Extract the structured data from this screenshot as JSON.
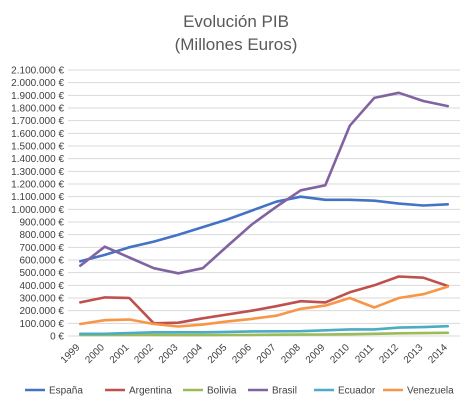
{
  "chart_data": {
    "type": "line",
    "title": "Evolución PIB",
    "subtitle": "(Millones Euros)",
    "xlabel": "",
    "ylabel": "",
    "x": [
      "1999",
      "2000",
      "2001",
      "2002",
      "2003",
      "2004",
      "2005",
      "2006",
      "2007",
      "2008",
      "2009",
      "2010",
      "2011",
      "2012",
      "2013",
      "2014"
    ],
    "ylim": [
      0,
      2100000
    ],
    "ytick_step": 100000,
    "ytick_labels": [
      "0 €",
      "100.000 €",
      "200.000 €",
      "300.000 €",
      "400.000 €",
      "500.000 €",
      "600.000 €",
      "700.000 €",
      "800.000 €",
      "900.000 €",
      "1.000.000 €",
      "1.100.000 €",
      "1.200.000 €",
      "1.300.000 €",
      "1.400.000 €",
      "1.500.000 €",
      "1.600.000 €",
      "1.700.000 €",
      "1.800.000 €",
      "1.900.000 €",
      "2.000.000 €",
      "2.100.000 €"
    ],
    "grid": true,
    "legend_position": "bottom",
    "series": [
      {
        "name": "España",
        "color": "#4472c4",
        "values": [
          590000,
          640000,
          700000,
          745000,
          800000,
          860000,
          920000,
          990000,
          1060000,
          1100000,
          1075000,
          1075000,
          1068000,
          1045000,
          1030000,
          1040000
        ]
      },
      {
        "name": "Argentina",
        "color": "#c0504d",
        "values": [
          265000,
          305000,
          300000,
          100000,
          105000,
          140000,
          170000,
          200000,
          235000,
          275000,
          265000,
          345000,
          400000,
          470000,
          460000,
          395000
        ]
      },
      {
        "name": "Bolivia",
        "color": "#9bbb59",
        "values": [
          8000,
          9000,
          9000,
          8500,
          7500,
          7500,
          8000,
          9000,
          10000,
          11000,
          12000,
          14000,
          17000,
          21000,
          23000,
          25000
        ]
      },
      {
        "name": "Brasil",
        "color": "#8064a2",
        "values": [
          555000,
          705000,
          620000,
          535000,
          495000,
          535000,
          710000,
          880000,
          1020000,
          1150000,
          1190000,
          1660000,
          1880000,
          1920000,
          1855000,
          1815000
        ]
      },
      {
        "name": "Ecuador",
        "color": "#4bacc6",
        "values": [
          17000,
          17000,
          24000,
          29000,
          29000,
          29000,
          32000,
          36000,
          37000,
          38000,
          45000,
          52000,
          52000,
          66000,
          70000,
          77000
        ]
      },
      {
        "name": "Venezuela",
        "color": "#f79646",
        "values": [
          95000,
          125000,
          130000,
          95000,
          75000,
          90000,
          115000,
          135000,
          160000,
          215000,
          240000,
          300000,
          225000,
          300000,
          330000,
          390000
        ]
      }
    ]
  }
}
